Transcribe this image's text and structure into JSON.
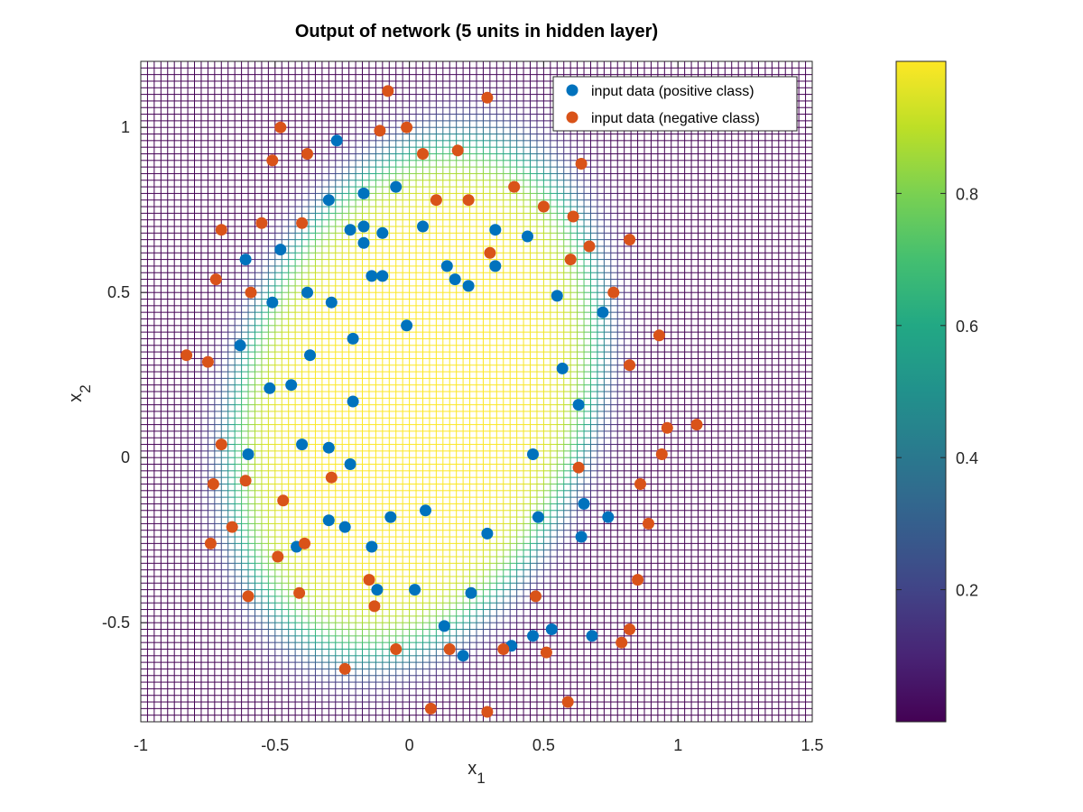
{
  "chart_data": {
    "type": "scatter",
    "title": "Output of network (5 units in hidden layer)",
    "xlabel": {
      "base": "x",
      "sub": "1"
    },
    "ylabel": {
      "base": "x",
      "sub": "2"
    },
    "xlim": [
      -1,
      1.5
    ],
    "ylim": [
      -0.8,
      1.2
    ],
    "xticks": [
      {
        "value": -1,
        "label": "-1"
      },
      {
        "value": -0.5,
        "label": "-0.5"
      },
      {
        "value": 0,
        "label": "0"
      },
      {
        "value": 0.5,
        "label": "0.5"
      },
      {
        "value": 1,
        "label": "1"
      },
      {
        "value": 1.5,
        "label": "1.5"
      }
    ],
    "yticks": [
      {
        "value": -0.5,
        "label": "-0.5"
      },
      {
        "value": 0,
        "label": "0"
      },
      {
        "value": 0.5,
        "label": "0.5"
      },
      {
        "value": 1,
        "label": "1"
      }
    ],
    "background_surface": {
      "type": "mesh",
      "description_of_values": "network output, high inside roughly elliptical region, low outside",
      "colormap": "viridis",
      "grid_lines": true
    },
    "colorbar": {
      "range": [
        0,
        1
      ],
      "ticks": [
        {
          "value": 0.2,
          "label": "0.2"
        },
        {
          "value": 0.4,
          "label": "0.4"
        },
        {
          "value": 0.6,
          "label": "0.6"
        },
        {
          "value": 0.8,
          "label": "0.8"
        }
      ]
    },
    "legend_position": "top-right",
    "series": [
      {
        "name": "input data (positive class)",
        "color": "#0072bd",
        "points": [
          [
            -0.27,
            0.96
          ],
          [
            -0.05,
            0.82
          ],
          [
            -0.17,
            0.8
          ],
          [
            -0.3,
            0.78
          ],
          [
            -0.22,
            0.69
          ],
          [
            -0.17,
            0.7
          ],
          [
            -0.1,
            0.68
          ],
          [
            0.05,
            0.7
          ],
          [
            -0.48,
            0.63
          ],
          [
            -0.17,
            0.65
          ],
          [
            0.32,
            0.69
          ],
          [
            0.44,
            0.67
          ],
          [
            -0.61,
            0.6
          ],
          [
            0.14,
            0.58
          ],
          [
            0.32,
            0.58
          ],
          [
            -0.14,
            0.55
          ],
          [
            -0.1,
            0.55
          ],
          [
            0.17,
            0.54
          ],
          [
            0.22,
            0.52
          ],
          [
            -0.38,
            0.5
          ],
          [
            0.55,
            0.49
          ],
          [
            -0.51,
            0.47
          ],
          [
            -0.29,
            0.47
          ],
          [
            0.72,
            0.44
          ],
          [
            -0.01,
            0.4
          ],
          [
            -0.21,
            0.36
          ],
          [
            -0.63,
            0.34
          ],
          [
            -0.37,
            0.31
          ],
          [
            0.57,
            0.27
          ],
          [
            -0.52,
            0.21
          ],
          [
            -0.44,
            0.22
          ],
          [
            -0.21,
            0.17
          ],
          [
            0.63,
            0.16
          ],
          [
            -0.4,
            0.04
          ],
          [
            -0.3,
            0.03
          ],
          [
            -0.6,
            0.01
          ],
          [
            0.46,
            0.01
          ],
          [
            -0.22,
            -0.02
          ],
          [
            0.06,
            -0.16
          ],
          [
            -0.3,
            -0.19
          ],
          [
            -0.07,
            -0.18
          ],
          [
            0.48,
            -0.18
          ],
          [
            0.65,
            -0.14
          ],
          [
            0.74,
            -0.18
          ],
          [
            -0.24,
            -0.21
          ],
          [
            0.29,
            -0.23
          ],
          [
            0.64,
            -0.24
          ],
          [
            -0.42,
            -0.27
          ],
          [
            -0.14,
            -0.27
          ],
          [
            -0.12,
            -0.4
          ],
          [
            0.02,
            -0.4
          ],
          [
            0.23,
            -0.41
          ],
          [
            0.13,
            -0.51
          ],
          [
            0.46,
            -0.54
          ],
          [
            0.53,
            -0.52
          ],
          [
            0.68,
            -0.54
          ],
          [
            0.38,
            -0.57
          ],
          [
            0.2,
            -0.6
          ]
        ]
      },
      {
        "name": "input data (negative class)",
        "color": "#d95319",
        "points": [
          [
            -0.08,
            1.11
          ],
          [
            0.29,
            1.09
          ],
          [
            -0.48,
            1.0
          ],
          [
            -0.11,
            0.99
          ],
          [
            -0.01,
            1.0
          ],
          [
            -0.51,
            0.9
          ],
          [
            -0.38,
            0.92
          ],
          [
            0.05,
            0.92
          ],
          [
            0.18,
            0.93
          ],
          [
            0.64,
            0.89
          ],
          [
            0.39,
            0.82
          ],
          [
            0.1,
            0.78
          ],
          [
            0.22,
            0.78
          ],
          [
            0.5,
            0.76
          ],
          [
            -0.55,
            0.71
          ],
          [
            -0.4,
            0.71
          ],
          [
            0.61,
            0.73
          ],
          [
            -0.7,
            0.69
          ],
          [
            0.67,
            0.64
          ],
          [
            0.82,
            0.66
          ],
          [
            0.3,
            0.62
          ],
          [
            0.6,
            0.6
          ],
          [
            -0.72,
            0.54
          ],
          [
            -0.59,
            0.5
          ],
          [
            0.76,
            0.5
          ],
          [
            0.93,
            0.37
          ],
          [
            -0.83,
            0.31
          ],
          [
            -0.75,
            0.29
          ],
          [
            0.82,
            0.28
          ],
          [
            1.07,
            0.1
          ],
          [
            0.96,
            0.09
          ],
          [
            -0.7,
            0.04
          ],
          [
            0.94,
            0.01
          ],
          [
            0.63,
            -0.03
          ],
          [
            -0.29,
            -0.06
          ],
          [
            -0.61,
            -0.07
          ],
          [
            -0.73,
            -0.08
          ],
          [
            0.86,
            -0.08
          ],
          [
            -0.47,
            -0.13
          ],
          [
            0.89,
            -0.2
          ],
          [
            -0.66,
            -0.21
          ],
          [
            -0.74,
            -0.26
          ],
          [
            -0.39,
            -0.26
          ],
          [
            -0.49,
            -0.3
          ],
          [
            -0.15,
            -0.37
          ],
          [
            0.85,
            -0.37
          ],
          [
            -0.6,
            -0.42
          ],
          [
            -0.41,
            -0.41
          ],
          [
            0.47,
            -0.42
          ],
          [
            -0.13,
            -0.45
          ],
          [
            0.82,
            -0.52
          ],
          [
            0.79,
            -0.56
          ],
          [
            -0.05,
            -0.58
          ],
          [
            0.15,
            -0.58
          ],
          [
            0.35,
            -0.58
          ],
          [
            0.51,
            -0.59
          ],
          [
            -0.24,
            -0.64
          ],
          [
            0.59,
            -0.74
          ],
          [
            0.08,
            -0.76
          ],
          [
            0.29,
            -0.77
          ]
        ]
      }
    ]
  }
}
